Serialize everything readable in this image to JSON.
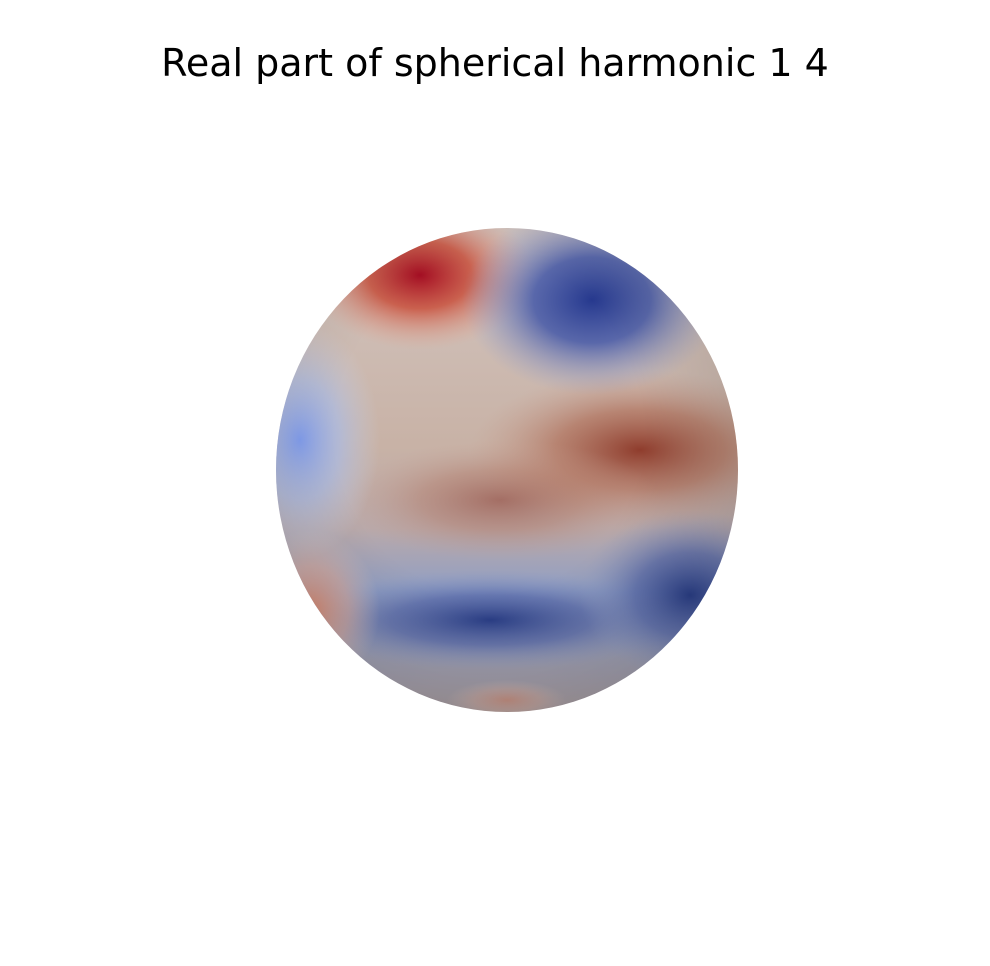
{
  "chart_data": {
    "type": "surface",
    "title": "Real part of spherical harmonic 1 4",
    "xlabel": "",
    "ylabel": "",
    "grid": false,
    "axes_visible": false,
    "legend": "none",
    "colormap": "coolwarm",
    "colormap_stops": [
      "#3b4cc0",
      "#8db0fe",
      "#dddddd",
      "#f49a7b",
      "#b40426"
    ],
    "series": [
      {
        "values": [
          {
            "feature": "maximum",
            "color": "#b40426"
          },
          {
            "feature": "minimum",
            "color": "#3b4cc0"
          },
          {
            "feature": "band",
            "color": "#c97b62"
          },
          {
            "feature": "band",
            "color": "#6f82c0"
          },
          {
            "feature": "band",
            "color": "#e39a86"
          }
        ]
      }
    ]
  }
}
